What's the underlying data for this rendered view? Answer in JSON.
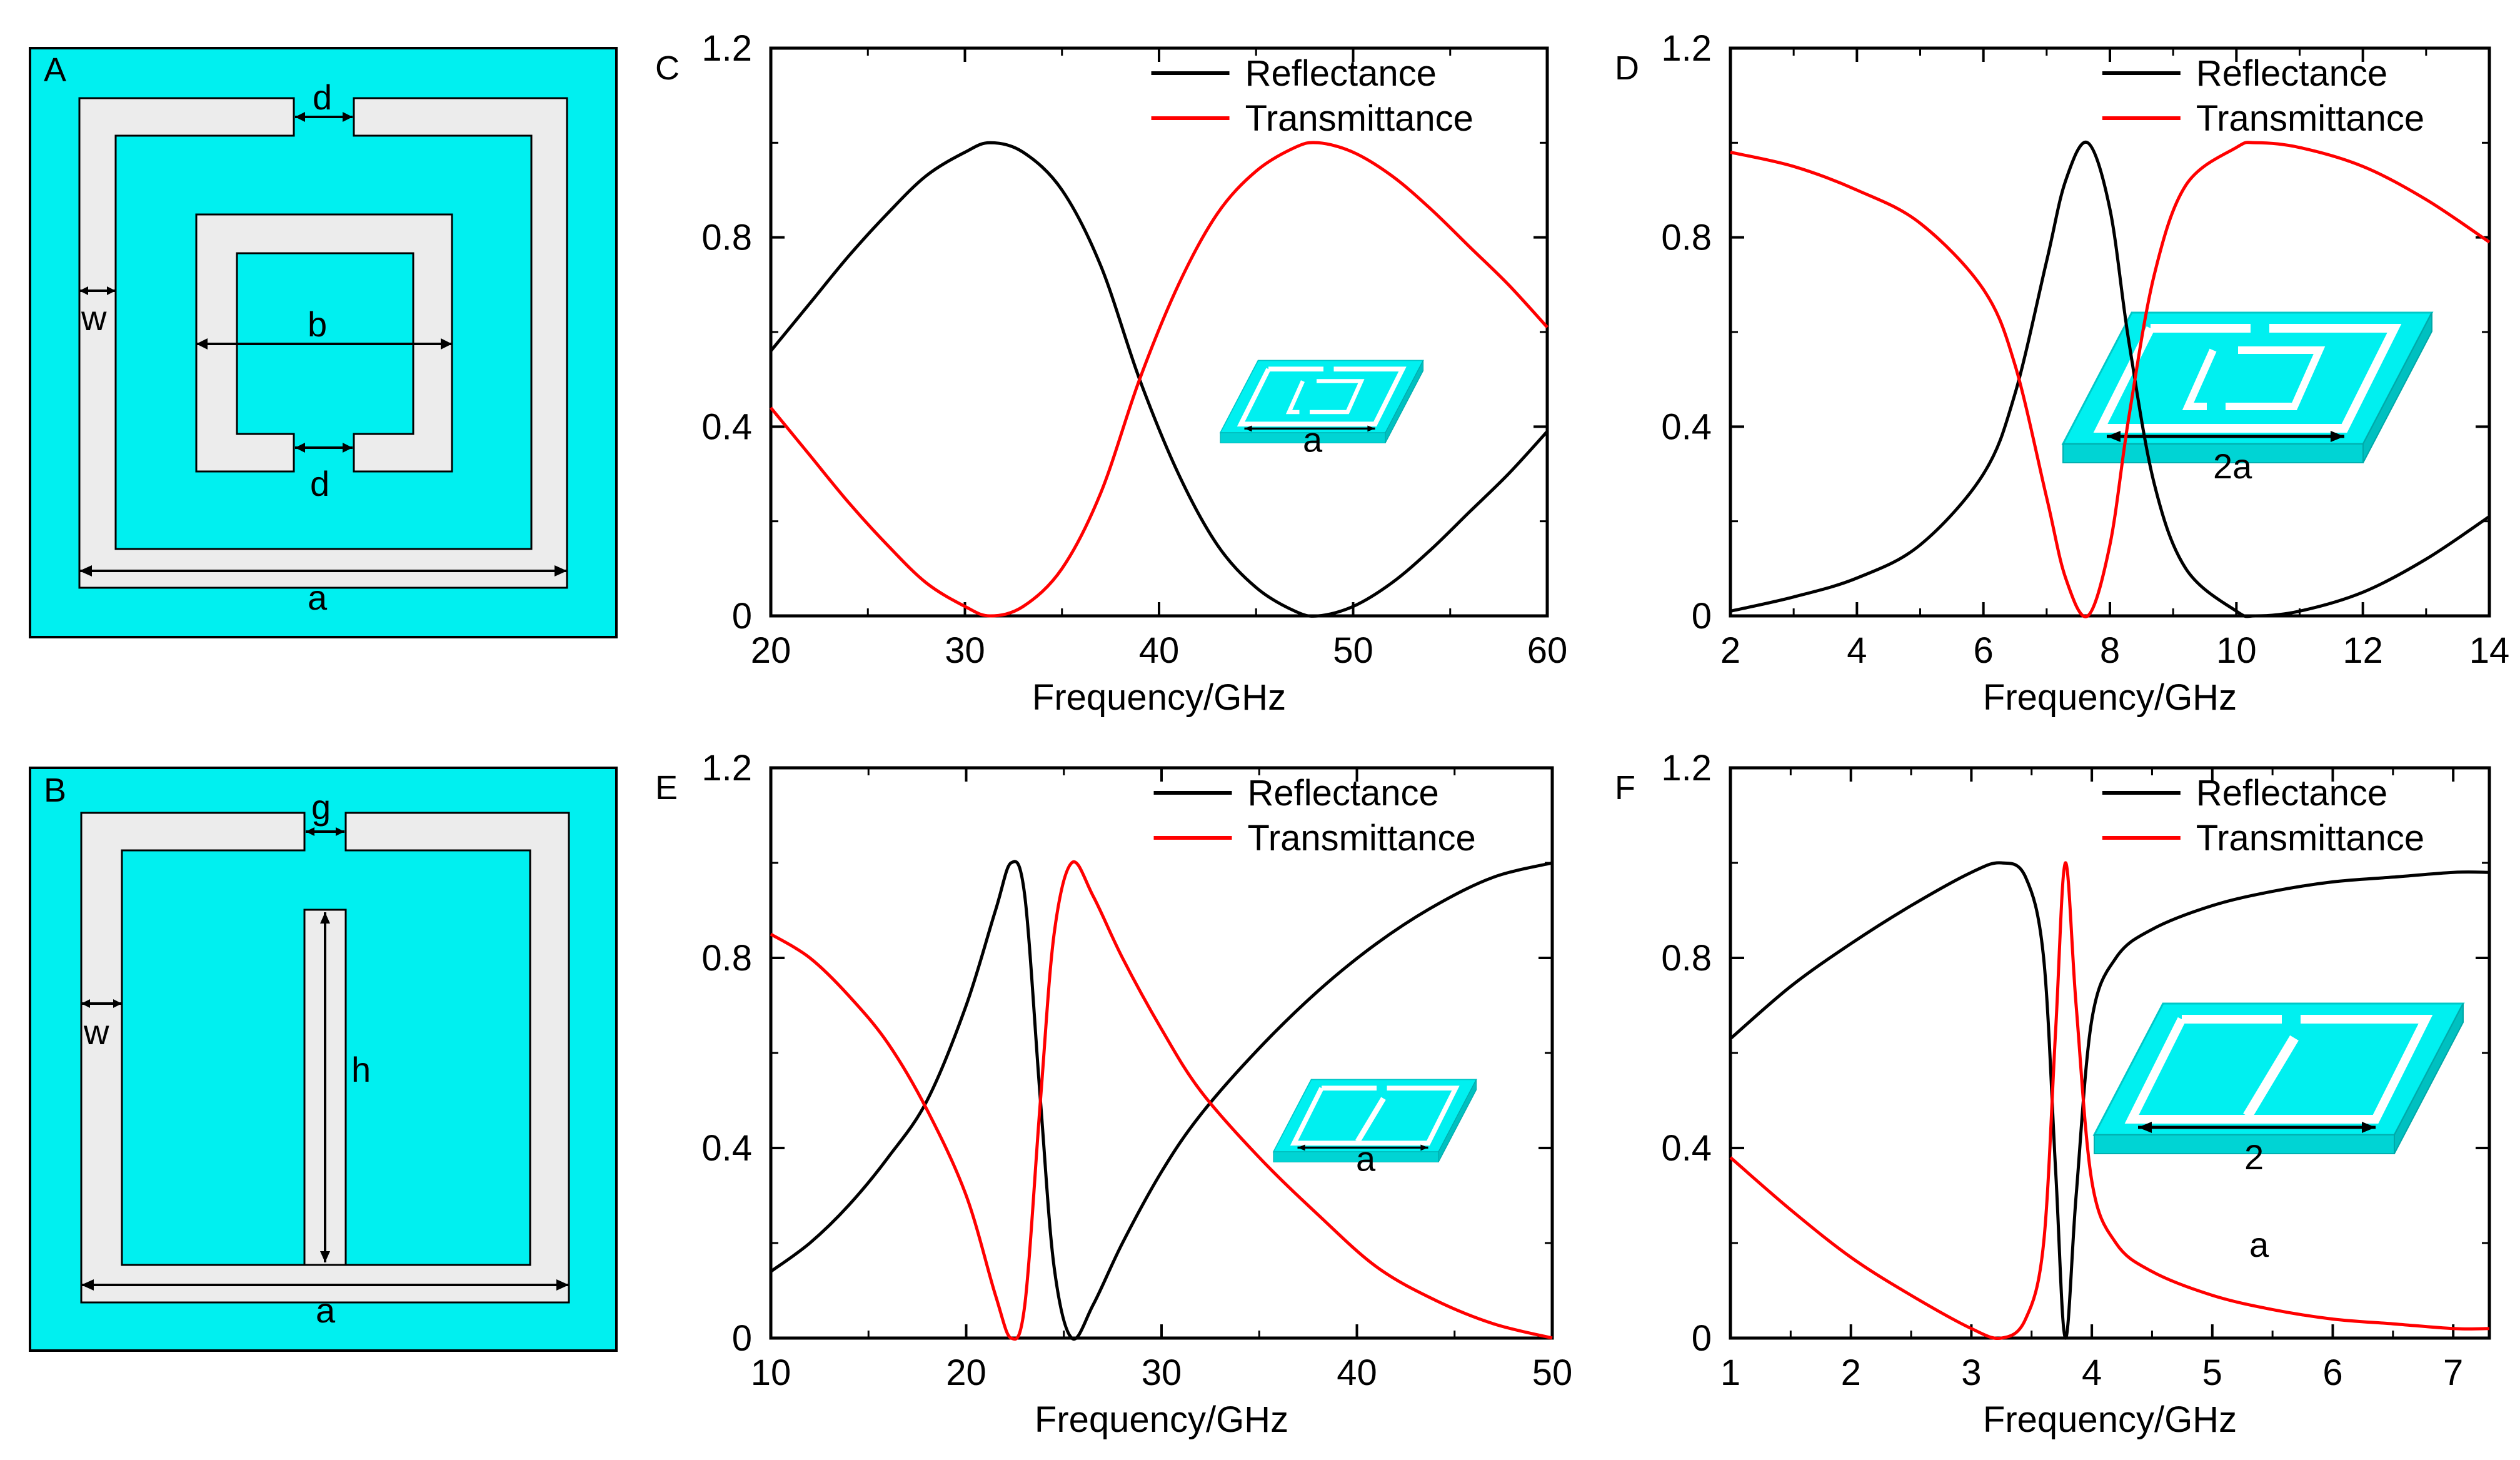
{
  "colors": {
    "cyan": "#00f0f0",
    "strip": "#ececec",
    "reflect": "#000000",
    "trans": "#ff0000"
  },
  "panels": {
    "A": {
      "label": "A",
      "d_top": "d",
      "d_bottom": "d",
      "w": "w",
      "b": "b",
      "a": "a"
    },
    "B": {
      "label": "B",
      "g": "g",
      "w": "w",
      "h": "h",
      "a": "a"
    }
  },
  "chart_data": [
    {
      "panel": "C",
      "type": "line",
      "xlabel": "Frequency/GHz",
      "ylabel": "",
      "xlim": [
        20,
        60
      ],
      "ylim": [
        0,
        1.2
      ],
      "xticks": [
        "20",
        "30",
        "40",
        "50",
        "60"
      ],
      "yticks": [
        "0",
        "0.4",
        "0.8",
        "1.2"
      ],
      "legend": [
        "Reflectance",
        "Transmittance"
      ],
      "inset_label": "a",
      "series": [
        {
          "name": "Reflectance",
          "color": "#000000",
          "x": [
            20,
            22,
            24,
            26,
            28,
            30,
            31.3,
            33,
            35,
            37,
            39,
            41,
            43,
            45,
            47,
            48.2,
            50,
            52,
            54,
            56,
            58,
            60
          ],
          "y": [
            0.56,
            0.66,
            0.76,
            0.85,
            0.93,
            0.98,
            1.0,
            0.98,
            0.9,
            0.74,
            0.5,
            0.3,
            0.15,
            0.06,
            0.01,
            0.0,
            0.02,
            0.07,
            0.14,
            0.22,
            0.3,
            0.39
          ]
        },
        {
          "name": "Transmittance",
          "color": "#ff0000",
          "x": [
            20,
            22,
            24,
            26,
            28,
            30,
            31.3,
            33,
            35,
            37,
            39,
            41,
            43,
            45,
            47,
            48.2,
            50,
            52,
            54,
            56,
            58,
            60
          ],
          "y": [
            0.44,
            0.34,
            0.24,
            0.15,
            0.07,
            0.02,
            0.0,
            0.02,
            0.1,
            0.26,
            0.5,
            0.7,
            0.85,
            0.94,
            0.99,
            1.0,
            0.98,
            0.93,
            0.86,
            0.78,
            0.7,
            0.61
          ]
        }
      ]
    },
    {
      "panel": "D",
      "type": "line",
      "xlabel": "Frequency/GHz",
      "ylabel": "",
      "xlim": [
        2,
        14
      ],
      "ylim": [
        0,
        1.2
      ],
      "xticks": [
        "2",
        "4",
        "6",
        "8",
        "10",
        "12",
        "14"
      ],
      "yticks": [
        "0",
        "0.4",
        "0.8",
        "1.2"
      ],
      "legend": [
        "Reflectance",
        "Transmittance"
      ],
      "inset_label": "2a",
      "series": [
        {
          "name": "Reflectance",
          "color": "#000000",
          "x": [
            2,
            3,
            4,
            5,
            6,
            6.5,
            7,
            7.3,
            7.65,
            8,
            8.3,
            8.7,
            9.2,
            10,
            10.3,
            11,
            12,
            13,
            14
          ],
          "y": [
            0.01,
            0.04,
            0.08,
            0.15,
            0.3,
            0.47,
            0.75,
            0.92,
            1.0,
            0.86,
            0.58,
            0.28,
            0.1,
            0.01,
            0.0,
            0.01,
            0.05,
            0.12,
            0.21
          ]
        },
        {
          "name": "Transmittance",
          "color": "#ff0000",
          "x": [
            2,
            3,
            4,
            5,
            6,
            6.5,
            7,
            7.3,
            7.65,
            8,
            8.3,
            8.7,
            9.2,
            10,
            10.3,
            11,
            12,
            13,
            14
          ],
          "y": [
            0.98,
            0.95,
            0.9,
            0.83,
            0.69,
            0.53,
            0.25,
            0.08,
            0.0,
            0.15,
            0.42,
            0.72,
            0.91,
            0.99,
            1.0,
            0.99,
            0.95,
            0.88,
            0.79
          ]
        }
      ]
    },
    {
      "panel": "E",
      "type": "line",
      "xlabel": "Frequency/GHz",
      "ylabel": "",
      "xlim": [
        10,
        50
      ],
      "ylim": [
        0,
        1.2
      ],
      "xticks": [
        "10",
        "20",
        "30",
        "40",
        "50"
      ],
      "yticks": [
        "0",
        "0.4",
        "0.8",
        "1.2"
      ],
      "legend": [
        "Reflectance",
        "Transmittance"
      ],
      "inset_label": "a",
      "series": [
        {
          "name": "Reflectance",
          "color": "#000000",
          "x": [
            10,
            12,
            14,
            16,
            18,
            20,
            21.5,
            22.3,
            23,
            23.8,
            24.5,
            25.4,
            26.5,
            28,
            30,
            32,
            35,
            38,
            41,
            44,
            47,
            50
          ],
          "y": [
            0.14,
            0.2,
            0.28,
            0.38,
            0.5,
            0.7,
            0.9,
            1.0,
            0.93,
            0.5,
            0.15,
            0.0,
            0.07,
            0.2,
            0.35,
            0.47,
            0.61,
            0.73,
            0.83,
            0.91,
            0.97,
            1.0
          ]
        },
        {
          "name": "Transmittance",
          "color": "#ff0000",
          "x": [
            10,
            12,
            14,
            16,
            18,
            20,
            21.5,
            22.3,
            23,
            23.8,
            24.5,
            25.4,
            26.5,
            28,
            30,
            32,
            35,
            38,
            41,
            44,
            47,
            50
          ],
          "y": [
            0.85,
            0.8,
            0.72,
            0.62,
            0.48,
            0.3,
            0.09,
            0.0,
            0.07,
            0.5,
            0.85,
            1.0,
            0.93,
            0.8,
            0.65,
            0.52,
            0.38,
            0.26,
            0.15,
            0.08,
            0.03,
            0.0
          ]
        }
      ]
    },
    {
      "panel": "F",
      "type": "line",
      "xlabel": "Frequency/GHz",
      "ylabel": "",
      "xlim": [
        1,
        7.3
      ],
      "ylim": [
        0,
        1.2
      ],
      "xticks": [
        "1",
        "2",
        "3",
        "4",
        "5",
        "6",
        "7"
      ],
      "yticks": [
        "0",
        "0.4",
        "0.8",
        "1.2"
      ],
      "legend": [
        "Reflectance",
        "Transmittance"
      ],
      "inset_label": "2",
      "inset_sublabel": "a",
      "series": [
        {
          "name": "Reflectance",
          "color": "#000000",
          "x": [
            1,
            1.5,
            2,
            2.5,
            3,
            3.25,
            3.45,
            3.6,
            3.7,
            3.78,
            3.87,
            4.0,
            4.2,
            4.5,
            5,
            5.5,
            6,
            6.5,
            7,
            7.3
          ],
          "y": [
            0.63,
            0.74,
            0.83,
            0.91,
            0.98,
            1.0,
            0.97,
            0.8,
            0.35,
            0.0,
            0.3,
            0.67,
            0.8,
            0.86,
            0.91,
            0.94,
            0.96,
            0.97,
            0.98,
            0.98
          ]
        },
        {
          "name": "Transmittance",
          "color": "#ff0000",
          "x": [
            1,
            1.5,
            2,
            2.5,
            3,
            3.25,
            3.45,
            3.6,
            3.7,
            3.78,
            3.87,
            4.0,
            4.2,
            4.5,
            5,
            5.5,
            6,
            6.5,
            7,
            7.3
          ],
          "y": [
            0.38,
            0.27,
            0.17,
            0.09,
            0.02,
            0.0,
            0.04,
            0.2,
            0.65,
            1.0,
            0.7,
            0.33,
            0.2,
            0.14,
            0.09,
            0.06,
            0.04,
            0.03,
            0.02,
            0.02
          ]
        }
      ]
    }
  ]
}
